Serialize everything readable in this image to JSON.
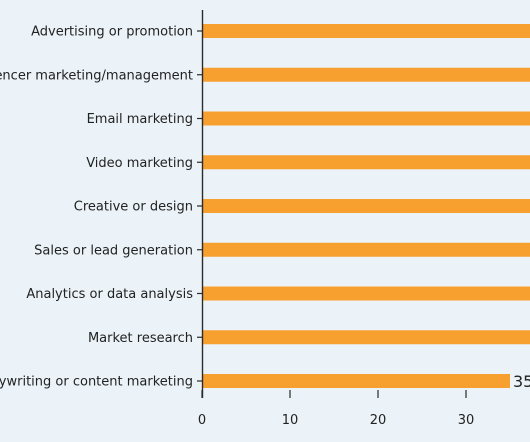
{
  "chart_data": {
    "type": "bar",
    "orientation": "horizontal",
    "categories": [
      "Advertising or promotion",
      "Influencer marketing/management",
      "Email marketing",
      "Video marketing",
      "Creative or design",
      "Sales or lead generation",
      "Analytics or data analysis",
      "Market research",
      "Copywriting or content marketing"
    ],
    "values": [
      null,
      null,
      null,
      null,
      null,
      null,
      null,
      null,
      35
    ],
    "value_labels": [
      "",
      "",
      "",
      "",
      "",
      "",
      "",
      "",
      "35"
    ],
    "x_ticks": [
      0,
      10,
      20,
      30
    ],
    "xlim": [
      0,
      37
    ],
    "grid": false,
    "bar_color": "#f7a02f",
    "axis_color": "#2b2b2b",
    "text_color": "#222222",
    "background": "#ebf3f8",
    "title": "",
    "xlabel": "",
    "ylabel": ""
  }
}
